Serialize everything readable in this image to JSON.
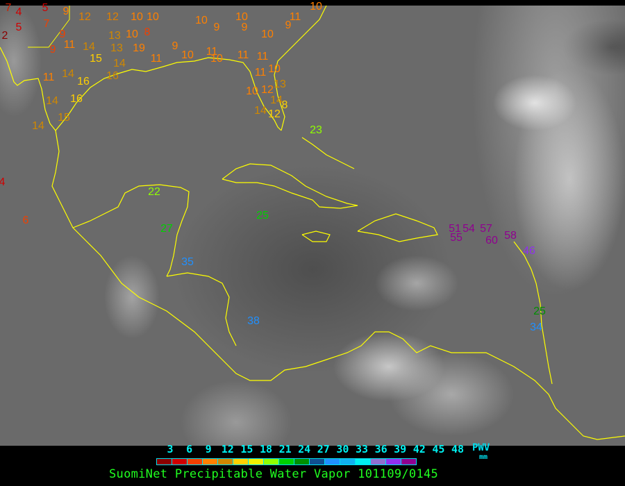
{
  "title": "SuomiNet Precipitable Water Vapor 101109/0145",
  "legend": {
    "unit_top": "PWV",
    "unit_bottom": "mm",
    "ticks": [
      "3",
      "6",
      "9",
      "12",
      "15",
      "18",
      "21",
      "24",
      "27",
      "30",
      "33",
      "36",
      "39",
      "42",
      "45",
      "48"
    ],
    "colors": [
      "#8b0000",
      "#d00000",
      "#f04000",
      "#ff8000",
      "#d08800",
      "#ffd000",
      "#f0f000",
      "#90ff00",
      "#00d000",
      "#009000",
      "#104f90",
      "#2090ff",
      "#10b0f0",
      "#00f0f0",
      "#9070d0",
      "#9030f0",
      "#900090"
    ]
  },
  "coastline_color": "#ffff00",
  "stations": [
    {
      "v": "7",
      "c": "#d02000"
    },
    {
      "v": "4",
      "c": "#d00000"
    },
    {
      "v": "5",
      "c": "#d00000"
    },
    {
      "v": "2",
      "c": "#8b0000"
    },
    {
      "v": "5",
      "c": "#d00000"
    },
    {
      "v": "7",
      "c": "#f04000"
    },
    {
      "v": "9",
      "c": "#ff8000"
    },
    {
      "v": "12",
      "c": "#e08000"
    },
    {
      "v": "12",
      "c": "#e08000"
    },
    {
      "v": "9",
      "c": "#f04000"
    },
    {
      "v": "9",
      "c": "#f04000"
    },
    {
      "v": "11",
      "c": "#ff8000"
    },
    {
      "v": "14",
      "c": "#d08800"
    },
    {
      "v": "13",
      "c": "#d08800"
    },
    {
      "v": "10",
      "c": "#ff8000"
    },
    {
      "v": "8",
      "c": "#f04000"
    },
    {
      "v": "10",
      "c": "#ff8000"
    },
    {
      "v": "10",
      "c": "#ff8000"
    },
    {
      "v": "15",
      "c": "#ffd000"
    },
    {
      "v": "13",
      "c": "#d08800"
    },
    {
      "v": "19",
      "c": "#ff8000"
    },
    {
      "v": "11",
      "c": "#ff8000"
    },
    {
      "v": "14",
      "c": "#d08800"
    },
    {
      "v": "16",
      "c": "#d08800"
    },
    {
      "v": "11",
      "c": "#ff8000"
    },
    {
      "v": "14",
      "c": "#d08800"
    },
    {
      "v": "16",
      "c": "#ffd000"
    },
    {
      "v": "16",
      "c": "#ffd000"
    },
    {
      "v": "14",
      "c": "#d08800"
    },
    {
      "v": "15",
      "c": "#d08800"
    },
    {
      "v": "14",
      "c": "#d08800"
    },
    {
      "v": "9",
      "c": "#ff8000"
    },
    {
      "v": "10",
      "c": "#ff8000"
    },
    {
      "v": "10",
      "c": "#ff8000"
    },
    {
      "v": "9",
      "c": "#ff8000"
    },
    {
      "v": "10",
      "c": "#ff8000"
    },
    {
      "v": "9",
      "c": "#ff8000"
    },
    {
      "v": "10",
      "c": "#ff8000"
    },
    {
      "v": "11",
      "c": "#ff8000"
    },
    {
      "v": "9",
      "c": "#ff8000"
    },
    {
      "v": "11",
      "c": "#ff8000"
    },
    {
      "v": "10",
      "c": "#ff8000"
    },
    {
      "v": "11",
      "c": "#ff8000"
    },
    {
      "v": "11",
      "c": "#ff8000"
    },
    {
      "v": "10",
      "c": "#ff8000"
    },
    {
      "v": "11",
      "c": "#ff8000"
    },
    {
      "v": "12",
      "c": "#ff8000"
    },
    {
      "v": "10",
      "c": "#ff8000"
    },
    {
      "v": "13",
      "c": "#d08800"
    },
    {
      "v": "14",
      "c": "#d08800"
    },
    {
      "v": "8",
      "c": "#ffd000"
    },
    {
      "v": "14",
      "c": "#d08800"
    },
    {
      "v": "12",
      "c": "#ffd000"
    },
    {
      "v": "23",
      "c": "#90ff00"
    },
    {
      "v": "22",
      "c": "#90ff00"
    },
    {
      "v": "27",
      "c": "#00d000"
    },
    {
      "v": "25",
      "c": "#00d000"
    },
    {
      "v": "35",
      "c": "#2090ff"
    },
    {
      "v": "38",
      "c": "#2090ff"
    },
    {
      "v": "4",
      "c": "#d00000"
    },
    {
      "v": "6",
      "c": "#f04000"
    },
    {
      "v": "51",
      "c": "#900090"
    },
    {
      "v": "54",
      "c": "#900090"
    },
    {
      "v": "57",
      "c": "#900090"
    },
    {
      "v": "55",
      "c": "#900090"
    },
    {
      "v": "60",
      "c": "#900090"
    },
    {
      "v": "58",
      "c": "#900090"
    },
    {
      "v": "46",
      "c": "#9030f0"
    },
    {
      "v": "25",
      "c": "#009000"
    },
    {
      "v": "34",
      "c": "#2090ff"
    },
    {
      "v": "10",
      "c": "#ff8000"
    }
  ]
}
